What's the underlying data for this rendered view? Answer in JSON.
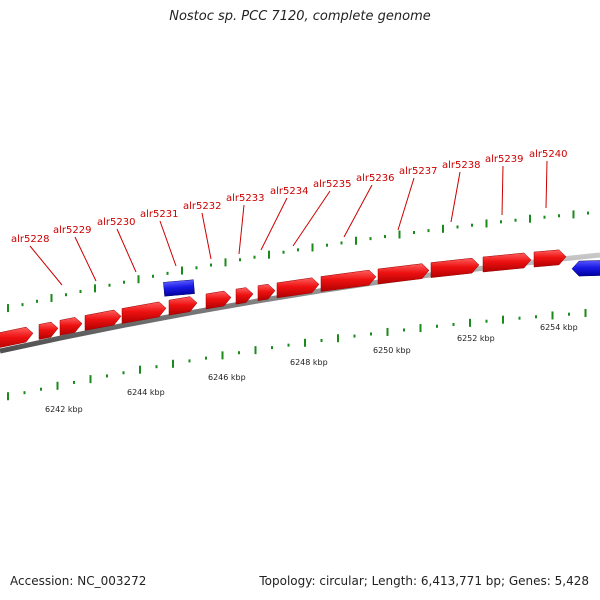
{
  "title": "Nostoc sp. PCC 7120, complete genome",
  "footer": {
    "accession": "Accession: NC_003272",
    "summary": "Topology: circular; Length: 6,413,771 bp; Genes: 5,428"
  },
  "colors": {
    "forward_gene": "#ee1111",
    "reverse_gene": "#1a1ae6",
    "label": "#cc0000",
    "backbone": "#808080",
    "tick": "#1a8a1a"
  },
  "gene_labels": [
    "alr5228",
    "alr5229",
    "alr5230",
    "alr5231",
    "alr5232",
    "alr5233",
    "alr5234",
    "alr5235",
    "alr5236",
    "alr5237",
    "alr5238",
    "alr5239",
    "alr5240"
  ],
  "scale_labels": [
    "6242 kbp",
    "6244 kbp",
    "6246 kbp",
    "6248 kbp",
    "6250 kbp",
    "6252 kbp",
    "6254 kbp"
  ]
}
